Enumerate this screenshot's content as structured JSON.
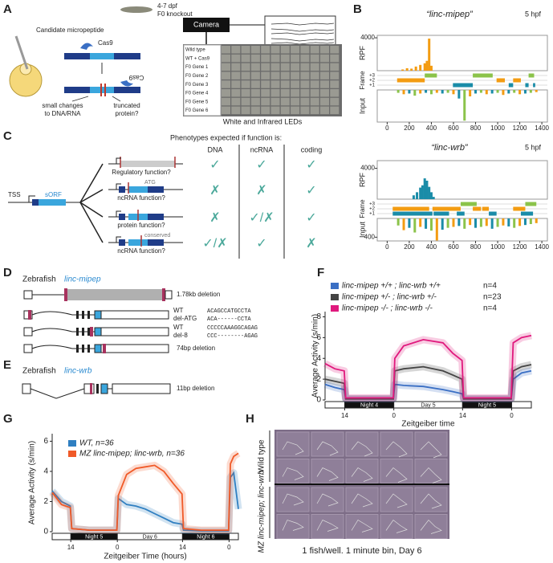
{
  "panels": {
    "a": {
      "label": "A",
      "micropeptide": "Candidate micropeptide",
      "cas9_top": "Cas9",
      "cas9_bottom": "Cas9",
      "changes": [
        "small changes",
        "to DNA/RNA"
      ],
      "truncated": [
        "truncated",
        "protein?"
      ],
      "fish": [
        "4-7 dpf",
        "F0 knockout"
      ],
      "camera": "Camera",
      "time_axis": "time (s)",
      "rows": [
        "Wild type",
        "WT + Cas9",
        "F0 Gene 1",
        "F0 Gene 2",
        "F0 Gene 3",
        "F0 Gene 4",
        "F0 Gene 5",
        "F0 Gene 6"
      ],
      "leds": "White and Infrared LEDs"
    },
    "b": {
      "label": "B",
      "plots": [
        {
          "title": "“linc-mipep”",
          "stage": "5 hpf",
          "rpf_label": "RPF",
          "frame_label": "Frame",
          "input_label": "Input",
          "xlim": [
            -90,
            1450
          ],
          "xticks": [
            0,
            200,
            400,
            600,
            800,
            1000,
            1200,
            1400
          ],
          "rpf": {
            "x": [
              140,
              180,
              220,
              260,
              300,
              340,
              360,
              380,
              400
            ],
            "values": [
              150,
              300,
              250,
              500,
              700,
              900,
              1200,
              3900,
              600
            ],
            "ylim": [
              0,
              4300
            ],
            "yticks": [
              4000
            ]
          },
          "frames": [
            {
              "label": "+3",
              "color": "#8bc34a",
              "orfs": [
                [
                  340,
                  450
                ],
                [
                  775,
                  955
                ],
                [
                  1280,
                  1330
                ]
              ]
            },
            {
              "label": "+2",
              "color": "#f39c12",
              "orfs": [
                [
                  90,
                  340
                ],
                [
                  990,
                  1065
                ],
                [
                  1140,
                  1210
                ]
              ]
            },
            {
              "label": "+1",
              "color": "#1a8ca8",
              "orfs": [
                [
                  595,
                  775
                ],
                [
                  1100,
                  1140
                ],
                [
                  1250,
                  1280
                ],
                [
                  1320,
                  1340
                ]
              ]
            }
          ],
          "input": {
            "x": [
              100,
              150,
              200,
              250,
              300,
              350,
              400,
              450,
              500,
              550,
              600,
              650,
              700,
              750,
              800,
              850,
              900,
              950,
              1000,
              1050,
              1100,
              1150,
              1200,
              1250,
              1300,
              1350
            ],
            "values": [
              40,
              60,
              50,
              80,
              50,
              40,
              60,
              40,
              50,
              40,
              60,
              120,
              430,
              90,
              50,
              40,
              60,
              50,
              40,
              70,
              50,
              40,
              60,
              50,
              40,
              30
            ],
            "ylim": [
              0,
              450
            ]
          }
        },
        {
          "title": "“linc-wrb”",
          "stage": "5 hpf",
          "rpf_label": "RPF",
          "frame_label": "Frame",
          "input_label": "Input",
          "xlim": [
            -90,
            1450
          ],
          "xticks": [
            0,
            200,
            400,
            600,
            800,
            1000,
            1200,
            1400
          ],
          "rpf": {
            "x": [
              240,
              270,
              300,
              320,
              340,
              360,
              380,
              400,
              420
            ],
            "values": [
              500,
              900,
              1500,
              1800,
              2700,
              2400,
              1600,
              900,
              300
            ],
            "ylim": [
              0,
              5000
            ],
            "yticks": [
              4000
            ]
          },
          "frames": [
            {
              "label": "+3",
              "color": "#8bc34a",
              "orfs": [
                [
                  665,
                  810
                ],
                [
                  1250,
                  1350
                ]
              ]
            },
            {
              "label": "+2",
              "color": "#f39c12",
              "orfs": [
                [
                  50,
                  380
                ],
                [
                  410,
                  665
                ],
                [
                  775,
                  850
                ],
                [
                  860,
                  920
                ],
                [
                  1140,
                  1250
                ]
              ]
            },
            {
              "label": "+1",
              "color": "#1a8ca8",
              "orfs": [
                [
                  50,
                  410
                ],
                [
                  420,
                  560
                ],
                [
                  630,
                  700
                ],
                [
                  920,
                  990
                ],
                [
                  1210,
                  1320
                ]
              ]
            }
          ],
          "input": {
            "x": [
              100,
              150,
              200,
              250,
              300,
              350,
              400,
              450,
              500,
              550,
              600,
              650,
              700,
              750,
              800,
              850,
              900,
              950,
              1000,
              1050,
              1100,
              1150,
              1200,
              1250,
              1300,
              1350
            ],
            "values": [
              150,
              250,
              200,
              300,
              180,
              220,
              260,
              470,
              240,
              200,
              180,
              160,
              220,
              140,
              200,
              180,
              160,
              220,
              180,
              150,
              170,
              200,
              160,
              140,
              120,
              100
            ],
            "ylim": [
              0,
              480
            ],
            "yticks": [
              400
            ]
          }
        }
      ]
    },
    "c": {
      "label": "C",
      "header": "Phenotypes expected if function is:",
      "columns": [
        "DNA",
        "ncRNA",
        "coding"
      ],
      "tss": "TSS",
      "sorf": "sORF",
      "rows": [
        {
          "caption": "Regulatory function?",
          "marks": [
            "✓",
            "✓",
            "✓"
          ]
        },
        {
          "caption": "ncRNA function?",
          "note": "ATG",
          "marks": [
            "✗",
            "✗",
            "✓"
          ]
        },
        {
          "caption": "protein function?",
          "marks": [
            "✗",
            "✓/✗",
            "✓"
          ]
        },
        {
          "caption": "ncRNA function?",
          "note": "conserved",
          "marks": [
            "✓/✗",
            "✓",
            "✗"
          ]
        }
      ]
    },
    "d": {
      "label": "D",
      "species": "Zebrafish",
      "gene": "linc-mipep",
      "deletion": "1.78kb deletion",
      "seqs": [
        [
          "WT",
          "ACAGCCATGCCTA"
        ],
        [
          "del-ATG",
          "ACA------CCTA"
        ],
        [
          "WT",
          "CCCCCAAAGGCAGAG"
        ],
        [
          "del-8",
          "CCC--------AGAG"
        ]
      ],
      "deletion2": "74bp deletion"
    },
    "e": {
      "label": "E",
      "species": "Zebrafish",
      "gene": "linc-wrb",
      "deletion": "11bp deletion"
    },
    "f": {
      "label": "F",
      "type": "line",
      "ylabel": "Average Activity (s/min)",
      "xlabel": "Zeitgeiber time",
      "xlim": [
        10,
        52
      ],
      "ylim": [
        0,
        8.5
      ],
      "yticks": [
        0,
        2,
        4,
        6,
        8
      ],
      "xticks": [
        {
          "value": 14,
          "label": "14"
        },
        {
          "value": 24,
          "label": "0"
        },
        {
          "value": 38,
          "label": "14"
        },
        {
          "value": 48,
          "label": "0"
        }
      ],
      "periods": [
        {
          "label": "Night 4",
          "start": 14,
          "end": 24
        },
        {
          "label": "Day 5",
          "start": 24,
          "end": 38
        },
        {
          "label": "Night 5",
          "start": 38,
          "end": 48
        }
      ],
      "x": [
        10,
        12,
        13.9,
        14.2,
        20,
        23.9,
        24.2,
        26,
        30,
        34,
        36,
        37.9,
        38.2,
        44,
        47.9,
        48.3,
        50,
        52
      ],
      "series": [
        {
          "name": "linc-mipep +/+ ; linc-wrb +/+",
          "n": "n=4",
          "color": "#3a6fc4",
          "values": [
            1.5,
            1.2,
            1.0,
            0.1,
            0.1,
            0.1,
            1.5,
            1.4,
            1.3,
            1.0,
            0.8,
            0.6,
            0.1,
            0.1,
            0.1,
            2.0,
            2.6,
            2.8
          ]
        },
        {
          "name": "linc-mipep +/- ; linc-wrb +/-",
          "n": "n=23",
          "color": "#444444",
          "values": [
            2.0,
            1.8,
            1.6,
            0.1,
            0.1,
            0.1,
            2.8,
            3.0,
            3.2,
            2.8,
            2.4,
            2.0,
            0.1,
            0.1,
            0.1,
            2.8,
            3.2,
            3.4
          ]
        },
        {
          "name": "linc-mipep -/- ; linc-wrb -/-",
          "n": "n=4",
          "color": "#e0197d",
          "values": [
            3.5,
            3.0,
            2.8,
            0.2,
            0.2,
            0.2,
            4.0,
            5.2,
            5.8,
            5.5,
            4.5,
            3.8,
            0.2,
            0.2,
            0.2,
            5.5,
            6.0,
            6.2
          ]
        }
      ]
    },
    "g": {
      "label": "G",
      "type": "line",
      "ylabel": "Average Activity (s/min)",
      "xlabel": "Zeitgeiber Time (hours)",
      "xlim": [
        10,
        50
      ],
      "ylim": [
        0,
        6.5
      ],
      "yticks": [
        0,
        2,
        4,
        6
      ],
      "xticks": [
        {
          "value": 14,
          "label": "14"
        },
        {
          "value": 24,
          "label": "0"
        },
        {
          "value": 38,
          "label": "14"
        },
        {
          "value": 48,
          "label": "0"
        }
      ],
      "periods": [
        {
          "label": "Night 5",
          "start": 14,
          "end": 24
        },
        {
          "label": "Day 6",
          "start": 24,
          "end": 38
        },
        {
          "label": "Night 6",
          "start": 38,
          "end": 48
        }
      ],
      "x": [
        10,
        12,
        13.9,
        14.2,
        18,
        23.9,
        24.2,
        26,
        28,
        30,
        32,
        34,
        36,
        37.9,
        38.2,
        42,
        47.9,
        48.3,
        49,
        50
      ],
      "series": [
        {
          "name": "WT, n=36",
          "color": "#2f7fc1",
          "values": [
            2.7,
            2.0,
            1.7,
            0.2,
            0.1,
            0.1,
            2.2,
            1.8,
            1.7,
            1.5,
            1.2,
            0.9,
            0.6,
            0.5,
            0.1,
            0.05,
            0.05,
            3.6,
            3.9,
            1.5
          ]
        },
        {
          "name": "MZ linc-mipep; linc-wrb, n=36",
          "color": "#f05a28",
          "values": [
            2.6,
            1.8,
            1.6,
            0.2,
            0.1,
            0.1,
            2.4,
            3.8,
            4.2,
            4.3,
            4.4,
            4.0,
            3.2,
            2.5,
            0.2,
            0.1,
            0.1,
            4.5,
            5.0,
            5.2
          ]
        }
      ]
    },
    "h": {
      "label": "H",
      "rows": [
        "Wild type",
        "MZ linc-mipep; linc-wrb"
      ],
      "caption": "1 fish/well. 1 minute bin, Day 6"
    }
  }
}
